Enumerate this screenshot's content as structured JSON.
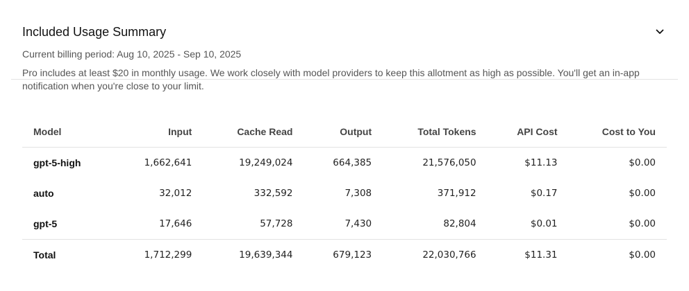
{
  "summary": {
    "title": "Included Usage Summary",
    "period": "Current billing period: Aug 10, 2025 - Sep 10, 2025",
    "description": "Pro includes at least $20 in monthly usage. We work closely with model providers to keep this allotment as high as possible. You'll get an in-app notification when you're close to your limit.",
    "toggle_icon": "chevron-down-icon"
  },
  "table": {
    "headers": [
      "Model",
      "Input",
      "Cache Read",
      "Output",
      "Total Tokens",
      "API Cost",
      "Cost to You"
    ],
    "rows": [
      [
        "gpt-5-high",
        "1,662,641",
        "19,249,024",
        "664,385",
        "21,576,050",
        "$11.13",
        "$0.00"
      ],
      [
        "auto",
        "32,012",
        "332,592",
        "7,308",
        "371,912",
        "$0.17",
        "$0.00"
      ],
      [
        "gpt-5",
        "17,646",
        "57,728",
        "7,430",
        "82,804",
        "$0.01",
        "$0.00"
      ]
    ],
    "total": [
      "Total",
      "1,712,299",
      "19,639,344",
      "679,123",
      "22,030,766",
      "$11.31",
      "$0.00"
    ]
  },
  "colors": {
    "text": "#1a1a1a",
    "muted": "#555555",
    "border": "#e3e3e3"
  }
}
